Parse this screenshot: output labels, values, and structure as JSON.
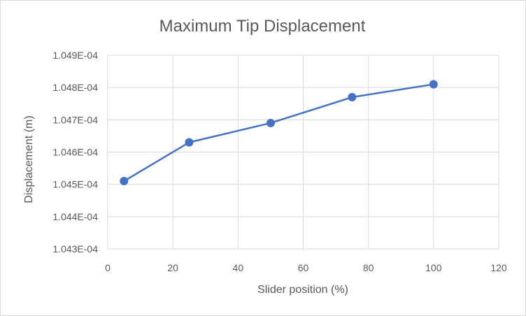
{
  "chart_data": {
    "type": "scatter",
    "title": "Maximum Tip Displacement",
    "xlabel": "Slider position (%)",
    "ylabel": "Displacement (m)",
    "xlim": [
      0,
      120
    ],
    "ylim": [
      0.0001043,
      0.0001049
    ],
    "x_ticks": [
      "0",
      "20",
      "40",
      "60",
      "80",
      "100",
      "120"
    ],
    "y_ticks": [
      "1.043E-04",
      "1.044E-04",
      "1.045E-04",
      "1.046E-04",
      "1.047E-04",
      "1.048E-04",
      "1.049E-04"
    ],
    "grid": true,
    "legend": "none",
    "series": [
      {
        "x": [
          5,
          25,
          50,
          75,
          100
        ],
        "y": [
          0.00010451,
          0.00010463,
          0.00010469,
          0.00010477,
          0.00010481
        ],
        "color": "#4472c4",
        "lines": true,
        "markers": true
      }
    ]
  }
}
